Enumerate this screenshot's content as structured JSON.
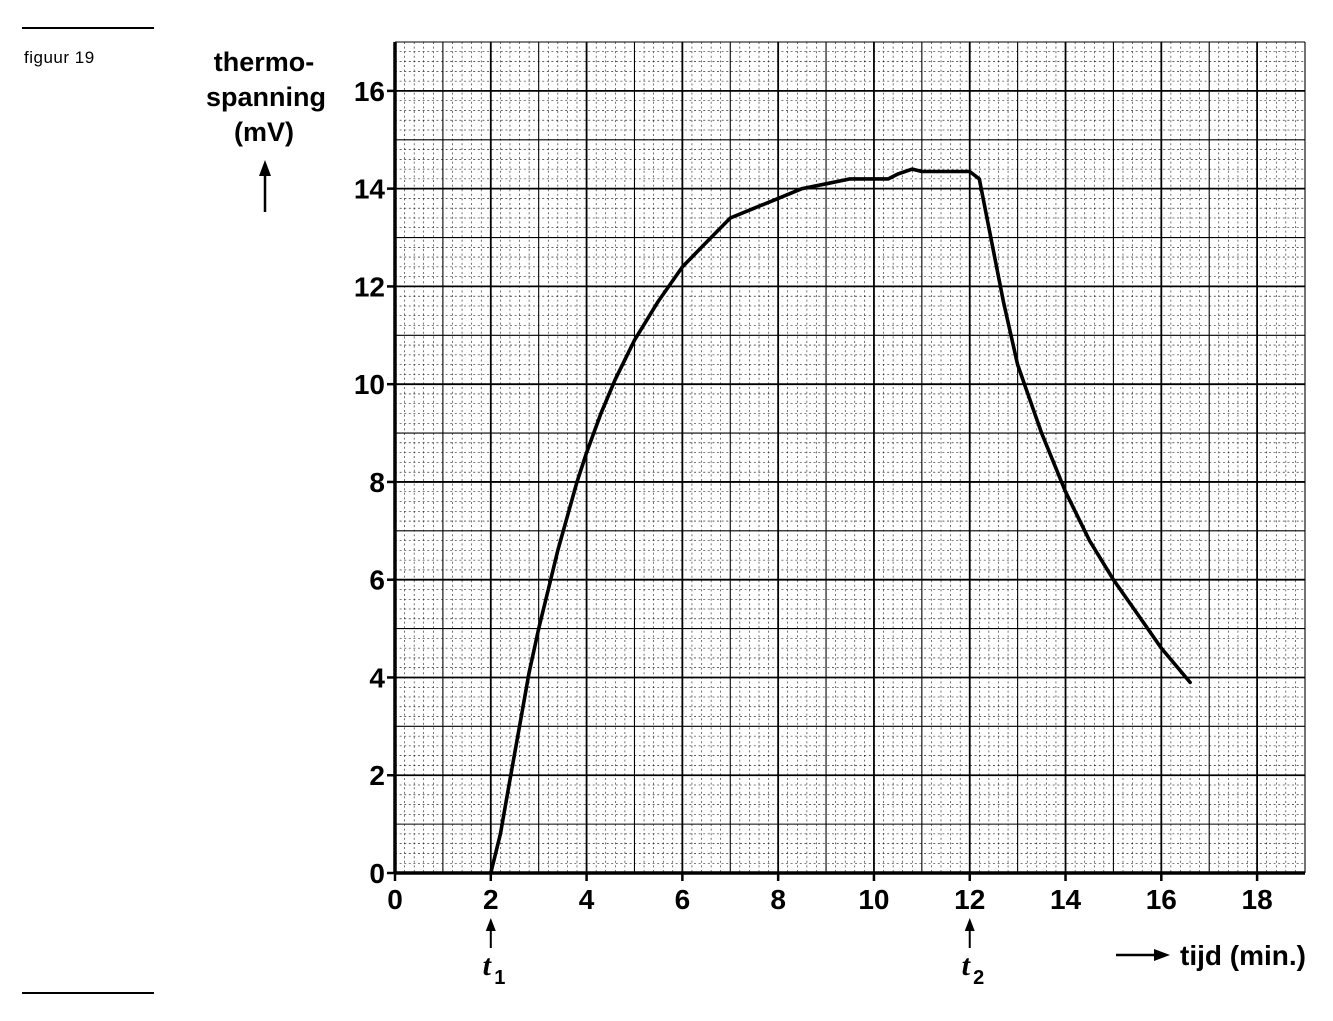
{
  "figure_label": "figuur 19",
  "chart_data": {
    "type": "line",
    "ylabel_lines": [
      "thermo-",
      "spanning",
      "(mV)"
    ],
    "xlabel": "tijd (min.)",
    "xlim": [
      0,
      19
    ],
    "ylim": [
      0,
      17
    ],
    "x_ticks": [
      0,
      2,
      4,
      6,
      8,
      10,
      12,
      14,
      16,
      18
    ],
    "y_ticks": [
      0,
      2,
      4,
      6,
      8,
      10,
      12,
      14,
      16
    ],
    "grid": true,
    "markers": [
      {
        "x": 2,
        "label_main": "t",
        "label_sub": "1"
      },
      {
        "x": 12,
        "label_main": "t",
        "label_sub": "2"
      }
    ],
    "series": [
      {
        "values": [
          [
            2.0,
            0.0
          ],
          [
            2.2,
            0.8
          ],
          [
            2.4,
            1.9
          ],
          [
            2.6,
            3.0
          ],
          [
            2.8,
            4.1
          ],
          [
            3.0,
            5.0
          ],
          [
            3.2,
            5.8
          ],
          [
            3.4,
            6.6
          ],
          [
            3.6,
            7.3
          ],
          [
            3.8,
            8.0
          ],
          [
            4.0,
            8.6
          ],
          [
            4.3,
            9.4
          ],
          [
            4.6,
            10.1
          ],
          [
            5.0,
            10.9
          ],
          [
            5.5,
            11.7
          ],
          [
            6.0,
            12.4
          ],
          [
            6.5,
            12.9
          ],
          [
            7.0,
            13.4
          ],
          [
            7.5,
            13.6
          ],
          [
            8.0,
            13.8
          ],
          [
            8.5,
            14.0
          ],
          [
            9.0,
            14.1
          ],
          [
            9.5,
            14.2
          ],
          [
            10.0,
            14.2
          ],
          [
            10.3,
            14.2
          ],
          [
            10.5,
            14.3
          ],
          [
            10.8,
            14.4
          ],
          [
            11.0,
            14.35
          ],
          [
            11.5,
            14.35
          ],
          [
            12.0,
            14.35
          ],
          [
            12.2,
            14.2
          ],
          [
            12.4,
            13.2
          ],
          [
            12.7,
            11.7
          ],
          [
            13.0,
            10.4
          ],
          [
            13.5,
            9.0
          ],
          [
            14.0,
            7.8
          ],
          [
            14.5,
            6.8
          ],
          [
            15.0,
            6.0
          ],
          [
            15.5,
            5.3
          ],
          [
            16.0,
            4.6
          ],
          [
            16.6,
            3.9
          ]
        ]
      }
    ]
  }
}
